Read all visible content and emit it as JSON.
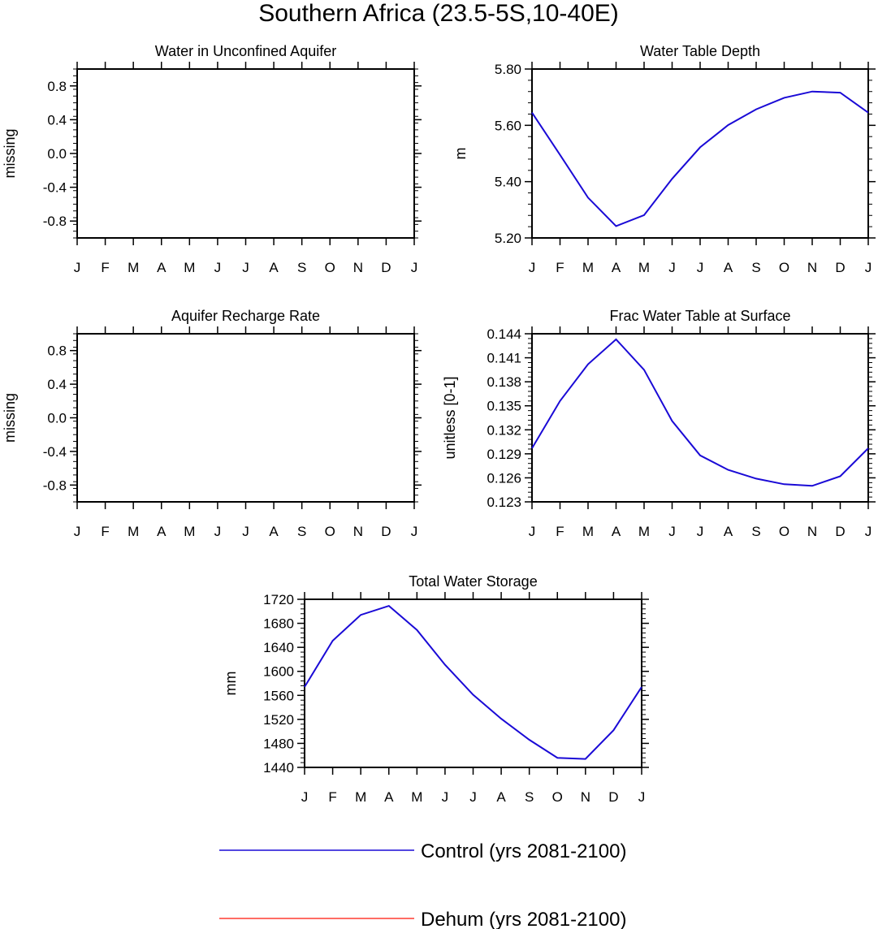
{
  "title": "Southern Africa (23.5-5S,10-40E)",
  "months": [
    "J",
    "F",
    "M",
    "A",
    "M",
    "J",
    "J",
    "A",
    "S",
    "O",
    "N",
    "D",
    "J"
  ],
  "colors": {
    "control": "#1a0ad6",
    "dehum": "#ff3b30",
    "axis": "#000000"
  },
  "legend": {
    "control": "Control (yrs 2081-2100)",
    "dehum": "Dehum (yrs 2081-2100)"
  },
  "chart_data": [
    {
      "type": "line",
      "title": "Water in Unconfined Aquifer",
      "ylabel": "missing",
      "xlabel": "",
      "categories": [
        "J",
        "F",
        "M",
        "A",
        "M",
        "J",
        "J",
        "A",
        "S",
        "O",
        "N",
        "D",
        "J"
      ],
      "ylim": [
        -1.0,
        1.0
      ],
      "yticks": [
        "0.8",
        "0.4",
        "0.0",
        "-0.4",
        "-0.8"
      ],
      "series": []
    },
    {
      "type": "line",
      "title": "Water Table Depth",
      "ylabel": "m",
      "xlabel": "",
      "categories": [
        "J",
        "F",
        "M",
        "A",
        "M",
        "J",
        "J",
        "A",
        "S",
        "O",
        "N",
        "D",
        "J"
      ],
      "ylim": [
        5.2,
        5.8
      ],
      "yticks": [
        "5.80",
        "5.60",
        "5.40",
        "5.20"
      ],
      "series": [
        {
          "name": "Control (yrs 2081-2100)",
          "color": "control",
          "values": [
            5.645,
            5.495,
            5.343,
            5.242,
            5.281,
            5.41,
            5.522,
            5.601,
            5.657,
            5.698,
            5.72,
            5.716,
            5.645
          ]
        }
      ]
    },
    {
      "type": "line",
      "title": "Aquifer Recharge Rate",
      "ylabel": "missing",
      "xlabel": "",
      "categories": [
        "J",
        "F",
        "M",
        "A",
        "M",
        "J",
        "J",
        "A",
        "S",
        "O",
        "N",
        "D",
        "J"
      ],
      "ylim": [
        -1.0,
        1.0
      ],
      "yticks": [
        "0.8",
        "0.4",
        "0.0",
        "-0.4",
        "-0.8"
      ],
      "series": []
    },
    {
      "type": "line",
      "title": "Frac Water Table at Surface",
      "ylabel": "unitless [0-1]",
      "xlabel": "",
      "categories": [
        "J",
        "F",
        "M",
        "A",
        "M",
        "J",
        "J",
        "A",
        "S",
        "O",
        "N",
        "D",
        "J"
      ],
      "ylim": [
        0.123,
        0.144
      ],
      "yticks": [
        "0.144",
        "0.141",
        "0.138",
        "0.135",
        "0.132",
        "0.129",
        "0.126",
        "0.123"
      ],
      "series": [
        {
          "name": "Control (yrs 2081-2100)",
          "color": "control",
          "values": [
            0.1297,
            0.1356,
            0.1402,
            0.1433,
            0.1395,
            0.1331,
            0.1288,
            0.127,
            0.1259,
            0.1252,
            0.125,
            0.1262,
            0.1297
          ]
        }
      ]
    },
    {
      "type": "line",
      "title": "Total Water Storage",
      "ylabel": "mm",
      "xlabel": "",
      "categories": [
        "J",
        "F",
        "M",
        "A",
        "M",
        "J",
        "J",
        "A",
        "S",
        "O",
        "N",
        "D",
        "J"
      ],
      "ylim": [
        1440,
        1720
      ],
      "yticks": [
        "1720",
        "1680",
        "1640",
        "1600",
        "1560",
        "1520",
        "1480",
        "1440"
      ],
      "series": [
        {
          "name": "Control (yrs 2081-2100)",
          "color": "control",
          "values": [
            1574,
            1651,
            1694,
            1709,
            1669,
            1611,
            1561,
            1521,
            1486,
            1456,
            1454,
            1502,
            1574
          ]
        }
      ]
    }
  ]
}
